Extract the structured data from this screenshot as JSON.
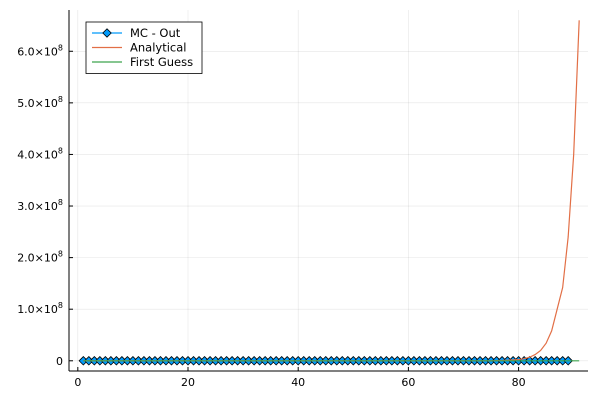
{
  "chart_data": {
    "type": "line",
    "title": "",
    "xlabel": "",
    "ylabel": "",
    "xlim": [
      -1.6,
      92.6
    ],
    "ylim": [
      -19800000,
      680000000
    ],
    "grid": true,
    "legend_position": "top-left",
    "x_ticks": [
      {
        "value": 0,
        "label": "0"
      },
      {
        "value": 20,
        "label": "20"
      },
      {
        "value": 40,
        "label": "40"
      },
      {
        "value": 60,
        "label": "60"
      },
      {
        "value": 80,
        "label": "80"
      }
    ],
    "y_ticks": [
      {
        "value": 0,
        "base": "0",
        "exp": ""
      },
      {
        "value": 100000000,
        "base": "1.0×10",
        "exp": "8"
      },
      {
        "value": 200000000,
        "base": "2.0×10",
        "exp": "8"
      },
      {
        "value": 300000000,
        "base": "3.0×10",
        "exp": "8"
      },
      {
        "value": 400000000,
        "base": "4.0×10",
        "exp": "8"
      },
      {
        "value": 500000000,
        "base": "5.0×10",
        "exp": "8"
      },
      {
        "value": 600000000,
        "base": "6.0×10",
        "exp": "8"
      }
    ],
    "series": [
      {
        "name": "MC - Out",
        "color": "#009AFA",
        "marker": "diamond",
        "x_start": 1,
        "x_end": 89,
        "x_step": 1,
        "constant_y": 0
      },
      {
        "name": "Analytical",
        "color": "#E26F46",
        "marker": "none",
        "points": [
          [
            1,
            0
          ],
          [
            60,
            0
          ],
          [
            75,
            0
          ],
          [
            78,
            1000000
          ],
          [
            80,
            2400000
          ],
          [
            81,
            4000000
          ],
          [
            82,
            6900000
          ],
          [
            83,
            12000000
          ],
          [
            84,
            20000000
          ],
          [
            85,
            34000000
          ],
          [
            86,
            58000000
          ],
          [
            87,
            100000000
          ],
          [
            88,
            142000000
          ],
          [
            89,
            240000000
          ],
          [
            90,
            400000000
          ],
          [
            91,
            660000000
          ]
        ]
      },
      {
        "name": "First Guess",
        "color": "#3EA44E",
        "marker": "none",
        "points": [
          [
            1,
            0
          ],
          [
            91,
            0
          ]
        ]
      }
    ]
  }
}
